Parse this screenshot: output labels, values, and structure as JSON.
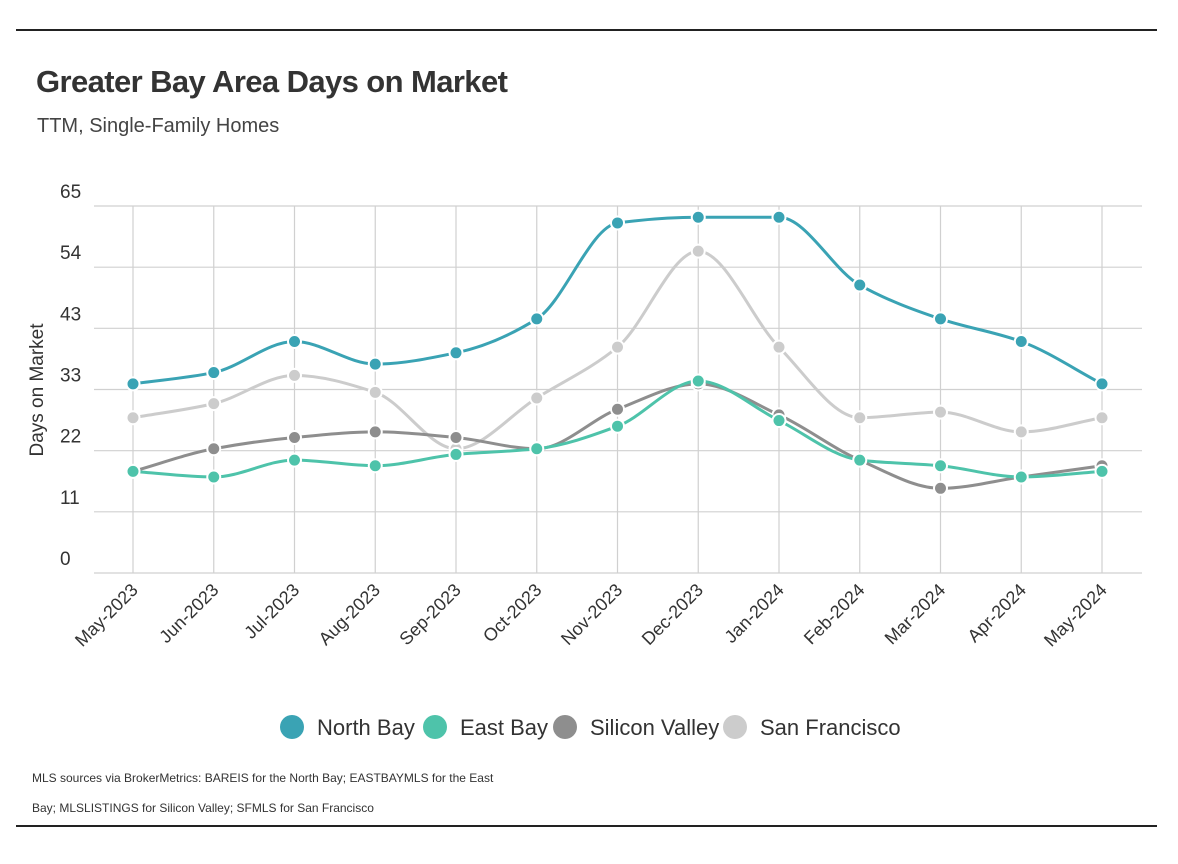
{
  "chart_data": {
    "type": "line",
    "title": "Greater Bay Area Days on Market",
    "subtitle": "TTM, Single-Family Homes",
    "ylabel": "Days on Market",
    "xlabel": "",
    "ylim": [
      0,
      65
    ],
    "y_ticks": [
      "0",
      "11",
      "22",
      "33",
      "43",
      "54",
      "65"
    ],
    "categories": [
      "May-2023",
      "Jun-2023",
      "Jul-2023",
      "Aug-2023",
      "Sep-2023",
      "Oct-2023",
      "Nov-2023",
      "Dec-2023",
      "Jan-2024",
      "Feb-2024",
      "Mar-2024",
      "Apr-2024",
      "May-2024"
    ],
    "grid": true,
    "legend_position": "bottom",
    "series": [
      {
        "name": "North Bay",
        "color": "#3aa3b4",
        "values": [
          33.5,
          35.5,
          41,
          37,
          39,
          45,
          62,
          63,
          63,
          51,
          45,
          41,
          33.5
        ]
      },
      {
        "name": "East Bay",
        "color": "#4ec3aa",
        "values": [
          18,
          17,
          20,
          19,
          21,
          22,
          26,
          34,
          27,
          20,
          19,
          17,
          18
        ]
      },
      {
        "name": "Silicon Valley",
        "color": "#8e8e8e",
        "values": [
          18,
          22,
          24,
          25,
          24,
          22,
          29,
          33.5,
          28,
          20,
          15,
          17,
          19
        ]
      },
      {
        "name": "San Francisco",
        "color": "#cccccc",
        "values": [
          27.5,
          30,
          35,
          32,
          22,
          31,
          40,
          57,
          40,
          27.5,
          28.5,
          25,
          27.5
        ]
      }
    ]
  },
  "footnote": {
    "line1": "MLS sources via BrokerMetrics: BAREIS for the North Bay; EASTBAYMLS for the East",
    "line2": "Bay; MLSLISTINGS for Silicon Valley; SFMLS for San Francisco"
  }
}
